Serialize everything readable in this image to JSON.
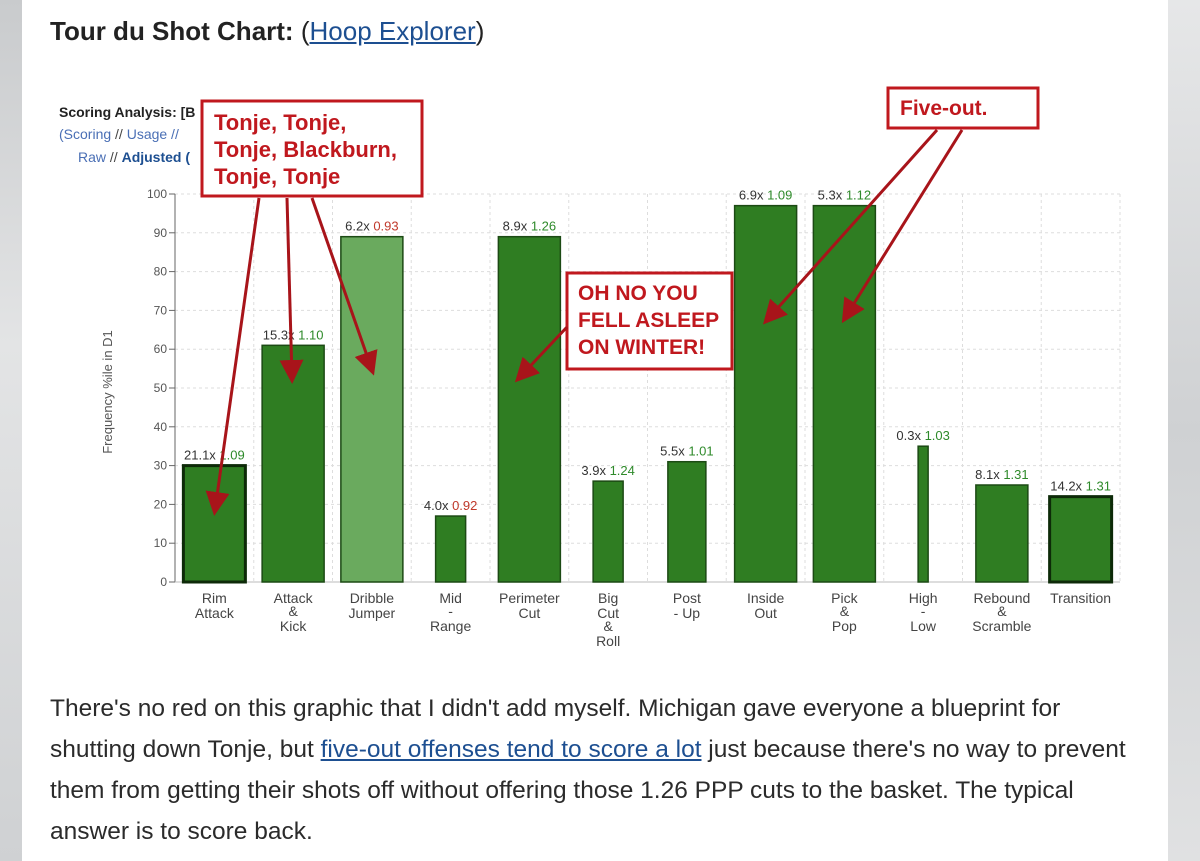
{
  "header": {
    "title_prefix": "Tour du Shot Chart:",
    "open_paren": "(",
    "link_text": "Hoop Explorer",
    "close_paren": ")"
  },
  "scoring_panel": {
    "title": "Scoring Analysis: [B",
    "line2_prefix": "(",
    "scoring": "Scoring",
    "sep": " // ",
    "usage": "Usage //",
    "raw": "Raw",
    "adjusted": "Adjusted ("
  },
  "annotations": {
    "tonje_box": [
      "Tonje, Tonje,",
      "Tonje, Blackburn,",
      "Tonje, Tonje"
    ],
    "fiveout_box": [
      "Five-out."
    ],
    "ohno_box": [
      "OH NO YOU",
      "FELL ASLEEP",
      "ON WINTER!"
    ]
  },
  "colors": {
    "bar_dark": "#2f7d22",
    "bar_light": "#6aaa5e",
    "bar_stroke_dark": "#0d2a08",
    "ppp_green": "#2e8a2a",
    "ppp_red": "#c0392b",
    "annotation_red": "#c0181e",
    "grid": "#dddddd"
  },
  "chart_data": {
    "type": "bar",
    "ylabel": "Frequency %ile in D1",
    "ylim": [
      0,
      100
    ],
    "yticks": [
      0,
      10,
      20,
      30,
      40,
      50,
      60,
      70,
      80,
      90,
      100
    ],
    "grid": true,
    "categories": [
      {
        "label": [
          "Rim",
          "Attack"
        ],
        "value": 30,
        "freq": "21.1x",
        "ppp": "1.09",
        "ppp_color": "green",
        "shade": "dark",
        "outlined": true
      },
      {
        "label": [
          "Attack",
          "&",
          "Kick"
        ],
        "value": 61,
        "freq": "15.3x",
        "ppp": "1.10",
        "ppp_color": "green",
        "shade": "dark",
        "outlined": false
      },
      {
        "label": [
          "Dribble",
          "Jumper"
        ],
        "value": 89,
        "freq": "6.2x",
        "ppp": "0.93",
        "ppp_color": "red",
        "shade": "light",
        "outlined": false
      },
      {
        "label": [
          "Mid",
          "-",
          "Range"
        ],
        "value": 17,
        "freq": "4.0x",
        "ppp": "0.92",
        "ppp_color": "red",
        "shade": "dark",
        "outlined": false
      },
      {
        "label": [
          "Perimeter",
          "Cut"
        ],
        "value": 89,
        "freq": "8.9x",
        "ppp": "1.26",
        "ppp_color": "green",
        "shade": "dark",
        "outlined": false
      },
      {
        "label": [
          "Big",
          "Cut",
          "&",
          "Roll"
        ],
        "value": 26,
        "freq": "3.9x",
        "ppp": "1.24",
        "ppp_color": "green",
        "shade": "dark",
        "outlined": false
      },
      {
        "label": [
          "Post",
          "- Up"
        ],
        "value": 31,
        "freq": "5.5x",
        "ppp": "1.01",
        "ppp_color": "green",
        "shade": "dark",
        "outlined": false
      },
      {
        "label": [
          "Inside",
          "Out"
        ],
        "value": 97,
        "freq": "6.9x",
        "ppp": "1.09",
        "ppp_color": "green",
        "shade": "dark",
        "outlined": false
      },
      {
        "label": [
          "Pick",
          "&",
          "Pop"
        ],
        "value": 97,
        "freq": "5.3x",
        "ppp": "1.12",
        "ppp_color": "green",
        "shade": "dark",
        "outlined": false
      },
      {
        "label": [
          "High",
          "-",
          "Low"
        ],
        "value": 35,
        "freq": "0.3x",
        "ppp": "1.03",
        "ppp_color": "green",
        "shade": "dark",
        "outlined": false
      },
      {
        "label": [
          "Rebound",
          "&",
          "Scramble"
        ],
        "value": 25,
        "freq": "8.1x",
        "ppp": "1.31",
        "ppp_color": "green",
        "shade": "dark",
        "outlined": false
      },
      {
        "label": [
          "Transition"
        ],
        "value": 22,
        "freq": "14.2x",
        "ppp": "1.31",
        "ppp_color": "green",
        "shade": "dark",
        "outlined": true
      }
    ]
  },
  "paragraph": {
    "text1": "There's no red on this graphic that I didn't add myself. Michigan gave everyone a blueprint for shutting down Tonje, but ",
    "link": "five-out offenses tend to score a lot",
    "text2": " just because there's no way to prevent them from getting their shots off without offering those 1.26 PPP cuts to the basket. The typical answer is to score back."
  }
}
